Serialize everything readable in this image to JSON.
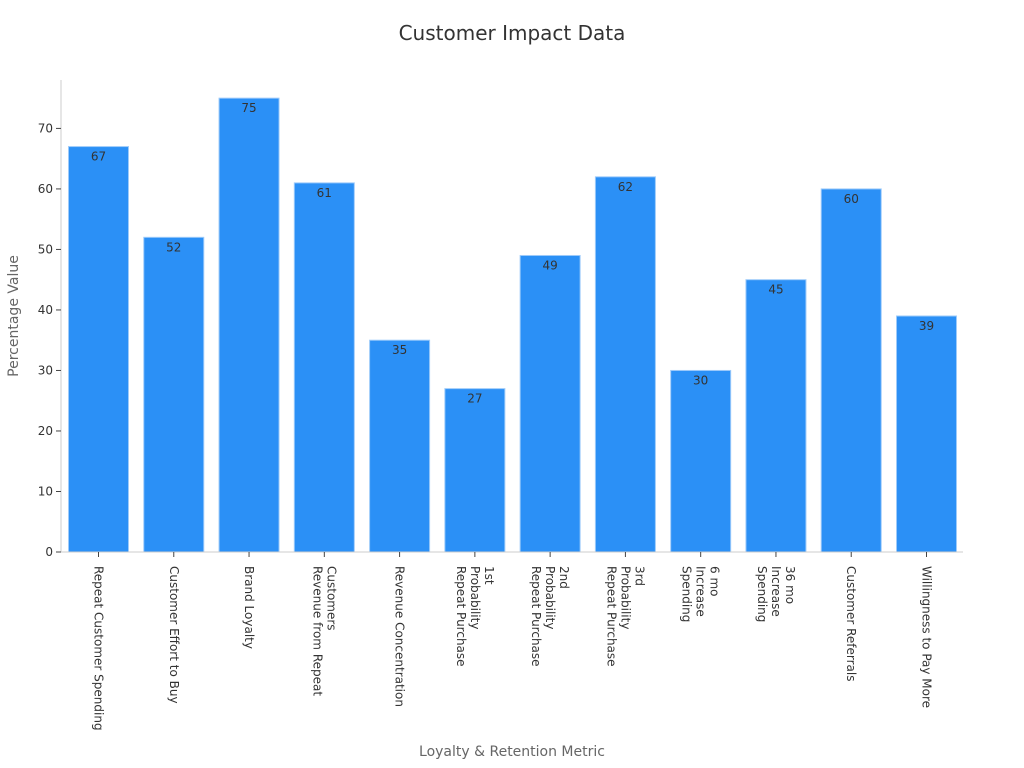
{
  "chart_data": {
    "type": "bar",
    "title": "Customer Impact Data",
    "xlabel": "Loyalty & Retention Metric",
    "ylabel": "Percentage Value",
    "ylim": [
      0,
      78
    ],
    "yticks": [
      0,
      10,
      20,
      30,
      40,
      50,
      60,
      70
    ],
    "grid": false,
    "bar_color": "#2b90f6",
    "bar_edge_color": "#9ecbfa",
    "categories": [
      [
        "Repeat Customer Spending"
      ],
      [
        "Customer Effort to Buy"
      ],
      [
        "Brand Loyalty"
      ],
      [
        "Revenue from Repeat",
        "Customers"
      ],
      [
        "Revenue Concentration"
      ],
      [
        "Repeat Purchase",
        "Probability",
        "1st"
      ],
      [
        "Repeat Purchase",
        "Probability",
        "2nd"
      ],
      [
        "Repeat Purchase",
        "Probability",
        "3rd"
      ],
      [
        "Spending",
        "Increase",
        "6 mo"
      ],
      [
        "Spending",
        "Increase",
        "36 mo"
      ],
      [
        "Customer Referrals"
      ],
      [
        "Willingness to Pay More"
      ]
    ],
    "values": [
      67,
      52,
      75,
      61,
      35,
      27,
      49,
      62,
      30,
      45,
      60,
      39
    ]
  }
}
